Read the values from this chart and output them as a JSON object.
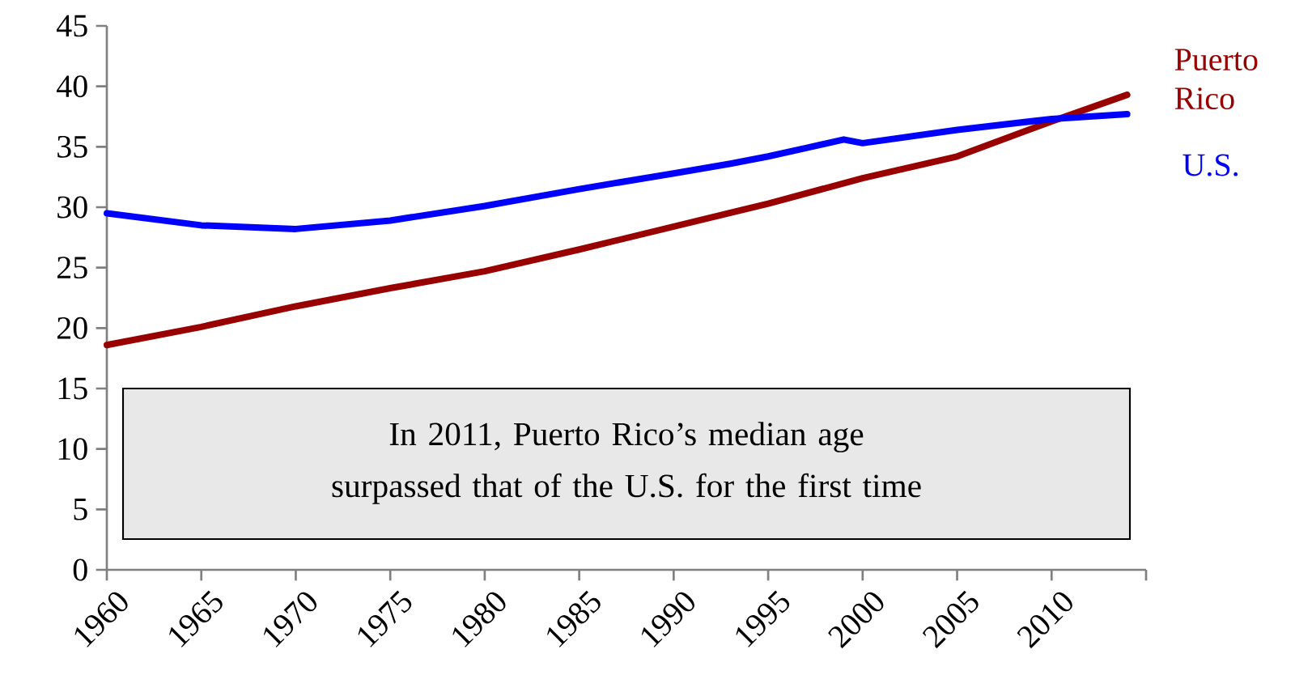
{
  "chart_data": {
    "type": "line",
    "x": [
      1960,
      1965,
      1970,
      1975,
      1980,
      1985,
      1990,
      1993,
      1995,
      1997,
      1999,
      2000,
      2005,
      2010,
      2014
    ],
    "series": [
      {
        "name": "Puerto Rico",
        "color": "#990000",
        "x": [
          1960,
          1965,
          1970,
          1975,
          1980,
          1985,
          1990,
          1995,
          2000,
          2005,
          2010,
          2014
        ],
        "values": [
          18.6,
          20.1,
          21.8,
          23.3,
          24.7,
          26.5,
          28.4,
          30.3,
          32.4,
          34.2,
          37.1,
          39.3
        ]
      },
      {
        "name": "U.S.",
        "color": "#0000ff",
        "values": [
          29.5,
          28.5,
          28.2,
          28.9,
          30.1,
          31.5,
          32.8,
          33.6,
          34.2,
          34.9,
          35.6,
          35.3,
          36.4,
          37.3,
          37.7
        ]
      }
    ],
    "xlim": [
      1960,
      2015
    ],
    "xticks": [
      1960,
      1965,
      1970,
      1975,
      1980,
      1985,
      1990,
      1995,
      2000,
      2005,
      2010,
      {
        "value": 2015,
        "label": null
      }
    ],
    "ylim": [
      0,
      45
    ],
    "yticks": [
      0,
      5,
      10,
      15,
      20,
      25,
      30,
      35,
      40,
      45
    ],
    "grid": false,
    "annotations": [
      "In 2011, Puerto Rico’s median age surpassed that of the U.S. for the first time"
    ]
  }
}
